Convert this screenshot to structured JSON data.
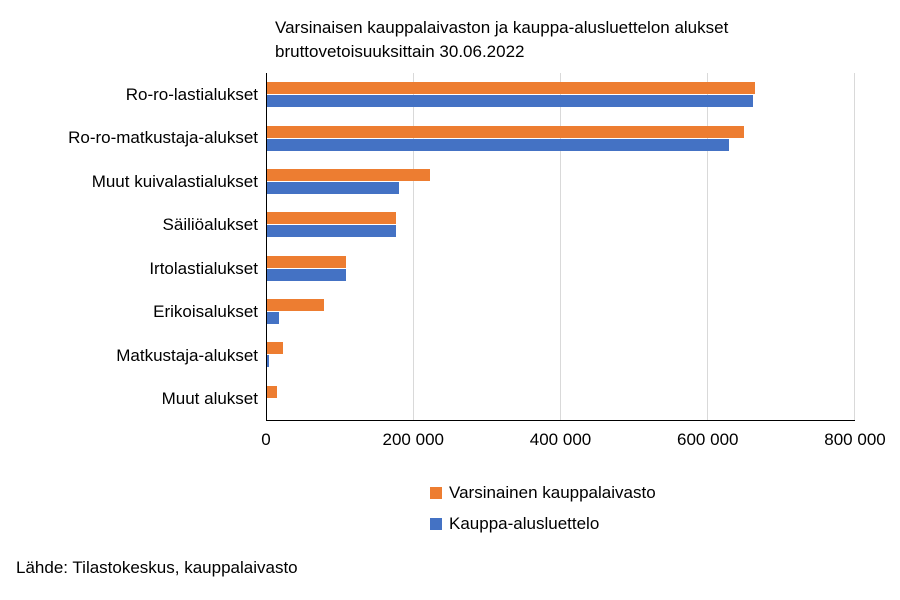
{
  "title": {
    "line1": "Varsinaisen kauppalaivaston ja kauppa-alusluettelon alukset",
    "line2": "bruttovetoisuuksittain 30.06.2022"
  },
  "footer": {
    "source": "Lähde: Tilastokeskus, kauppalaivasto"
  },
  "colors": {
    "series_orange": "#ED7D31",
    "series_blue": "#4472C4",
    "gridline": "#D9D9D9",
    "axis": "#000000",
    "background": "#FFFFFF",
    "text": "#000000"
  },
  "chart_data": {
    "type": "bar",
    "orientation": "horizontal",
    "title": "Varsinaisen kauppalaivaston ja kauppa-alusluettelon alukset bruttovetoisuuksittain 30.06.2022",
    "categories": [
      "Ro-ro-lastialukset",
      "Ro-ro-matkustaja-alukset",
      "Muut kuivalastialukset",
      "Säiliöalukset",
      "Irtolastialukset",
      "Erikoisalukset",
      "Matkustaja-alukset",
      "Muut alukset"
    ],
    "series": [
      {
        "id": "varsinainen-kauppalaivasto",
        "name": "Varsinainen kauppalaivasto",
        "color": "#ED7D31",
        "values": [
          664000,
          649000,
          222000,
          176000,
          108000,
          78000,
          22000,
          13000
        ]
      },
      {
        "id": "kauppa-alusluettelo",
        "name": "Kauppa-alusluettelo",
        "color": "#4472C4",
        "values": [
          661000,
          629000,
          179000,
          176000,
          108000,
          17000,
          3000,
          0
        ]
      }
    ],
    "xlabel": "",
    "ylabel": "",
    "xlim": [
      0,
      800000
    ],
    "x_ticks": [
      {
        "value": 0,
        "label": "0"
      },
      {
        "value": 200000,
        "label": "200 000"
      },
      {
        "value": 400000,
        "label": "400 000"
      },
      {
        "value": 600000,
        "label": "600 000"
      },
      {
        "value": 800000,
        "label": "800 000"
      }
    ],
    "grid": "vertical-only",
    "legend_position": "bottom"
  }
}
